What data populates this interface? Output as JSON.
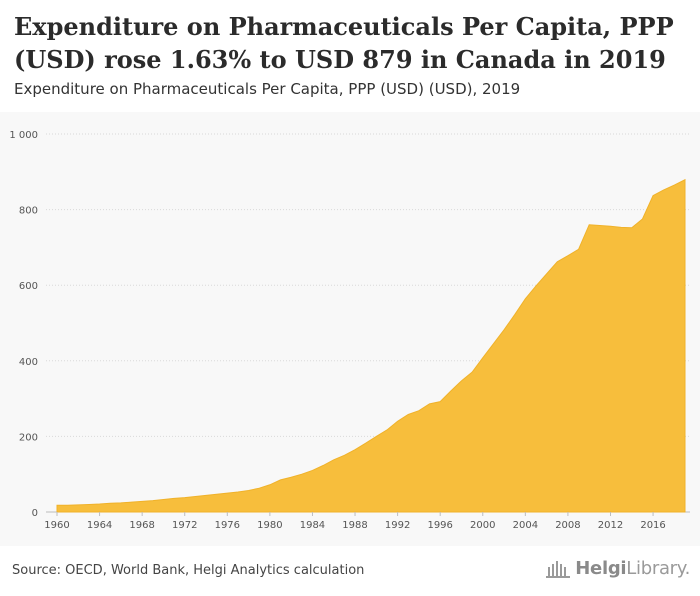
{
  "header": {
    "title": "Expenditure on Pharmaceuticals Per Capita, PPP (USD) rose 1.63% to USD 879 in Canada in 2019",
    "subtitle": "Expenditure on Pharmaceuticals Per Capita, PPP (USD) (USD), 2019"
  },
  "footer": {
    "source": "Source: OECD, World Bank, Helgi Analytics calculation",
    "logo_text_bold": "Helgi",
    "logo_text_regular": "Library."
  },
  "colors": {
    "area_fill": "#f7be3c",
    "area_stroke": "#f0b22a",
    "grid": "#d9d9d9",
    "axis_text": "#555555"
  },
  "chart_data": {
    "type": "area",
    "title": "Expenditure on Pharmaceuticals Per Capita, PPP (USD) rose 1.63% to USD 879 in Canada in 2019",
    "subtitle": "Expenditure on Pharmaceuticals Per Capita, PPP (USD) (USD), 2019",
    "xlabel": "",
    "ylabel": "",
    "ylim": [
      0,
      1000
    ],
    "xlim": [
      1960,
      2019
    ],
    "yticks": [
      0,
      200,
      400,
      600,
      800,
      1000
    ],
    "ytick_labels": [
      "0",
      "200",
      "400",
      "600",
      "800",
      "1 000"
    ],
    "xticks": [
      1960,
      1964,
      1968,
      1972,
      1976,
      1980,
      1984,
      1988,
      1992,
      1996,
      2000,
      2004,
      2008,
      2012,
      2016
    ],
    "grid": "horizontal",
    "legend": "none",
    "x": [
      1960,
      1961,
      1962,
      1963,
      1964,
      1965,
      1966,
      1967,
      1968,
      1969,
      1970,
      1971,
      1972,
      1973,
      1974,
      1975,
      1976,
      1977,
      1978,
      1979,
      1980,
      1981,
      1982,
      1983,
      1984,
      1985,
      1986,
      1987,
      1988,
      1989,
      1990,
      1991,
      1992,
      1993,
      1994,
      1995,
      1996,
      1997,
      1998,
      1999,
      2000,
      2001,
      2002,
      2003,
      2004,
      2005,
      2006,
      2007,
      2008,
      2009,
      2010,
      2011,
      2012,
      2013,
      2014,
      2015,
      2016,
      2017,
      2018,
      2019
    ],
    "series": [
      {
        "values": [
          18,
          18,
          19,
          20,
          21,
          23,
          24,
          26,
          28,
          30,
          33,
          36,
          38,
          41,
          44,
          47,
          50,
          53,
          57,
          63,
          72,
          85,
          92,
          100,
          110,
          123,
          138,
          150,
          165,
          182,
          200,
          217,
          240,
          258,
          268,
          286,
          292,
          320,
          347,
          370,
          408,
          445,
          482,
          522,
          564,
          598,
          630,
          662,
          678,
          695,
          760,
          758,
          756,
          753,
          752,
          775,
          837,
          852,
          865,
          879
        ]
      }
    ]
  }
}
